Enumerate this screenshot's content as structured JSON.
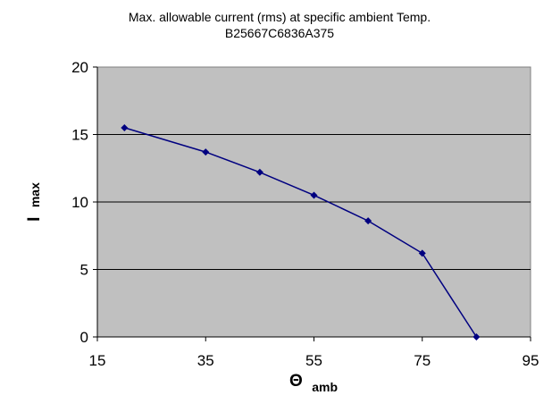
{
  "chart_data": {
    "type": "line",
    "title": "Max. allowable current (rms) at specific ambient Temp.",
    "subtitle": "B25667C6836A375",
    "xlabel": {
      "symbol": "Θ",
      "subscript": "amb"
    },
    "ylabel": {
      "symbol": "I",
      "subscript": "max"
    },
    "xlim": [
      15,
      95
    ],
    "ylim": [
      0,
      20
    ],
    "xticks": [
      "15",
      "35",
      "55",
      "75",
      "95"
    ],
    "yticks": [
      "0",
      "5",
      "10",
      "15",
      "20"
    ],
    "grid": {
      "horizontal": true,
      "vertical": false
    },
    "legend": "none",
    "plot_background": "#c0c0c0",
    "series": [
      {
        "color": "#000080",
        "marker": "diamond",
        "x": [
          20,
          35,
          45,
          55,
          65,
          75,
          85
        ],
        "y": [
          15.5,
          13.7,
          12.2,
          10.5,
          8.6,
          6.2,
          0
        ]
      }
    ]
  }
}
